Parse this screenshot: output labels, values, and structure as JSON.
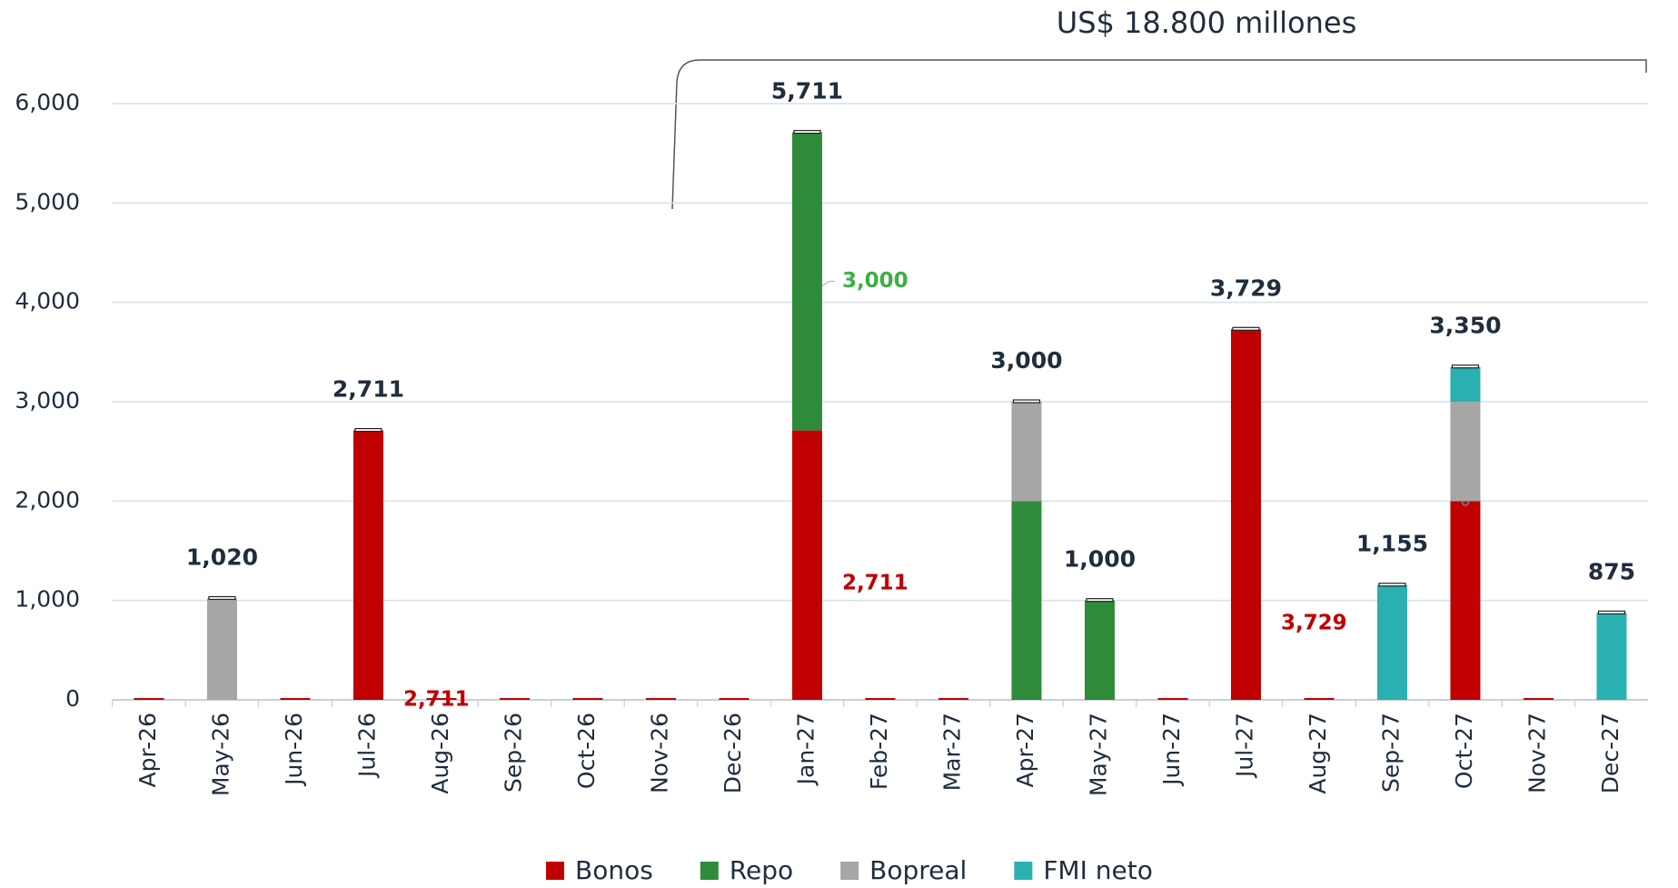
{
  "chart_data": {
    "type": "bar",
    "stacked": true,
    "annotation": "US$ 18.800 millones",
    "categories": [
      "Apr-26",
      "May-26",
      "Jun-26",
      "Jul-26",
      "Aug-26",
      "Sep-26",
      "Oct-26",
      "Nov-26",
      "Dec-26",
      "Jan-27",
      "Feb-27",
      "Mar-27",
      "Apr-27",
      "May-27",
      "Jun-27",
      "Jul-27",
      "Aug-27",
      "Sep-27",
      "Oct-27",
      "Nov-27",
      "Dec-27"
    ],
    "series": [
      {
        "name": "Bonos",
        "color": "#c00000",
        "label_color": "#c00000",
        "values": [
          0,
          0,
          0,
          2711,
          0,
          0,
          0,
          0,
          0,
          2711,
          0,
          0,
          0,
          0,
          0,
          3729,
          0,
          0,
          2000,
          0,
          0
        ],
        "value_labels": [
          null,
          null,
          null,
          "2,711",
          null,
          null,
          null,
          null,
          null,
          "2,711",
          null,
          null,
          null,
          null,
          null,
          "3,729",
          null,
          null,
          null,
          null,
          null
        ]
      },
      {
        "name": "Repo",
        "color": "#2e8b3a",
        "label_color": "#3cb043",
        "values": [
          0,
          0,
          0,
          0,
          0,
          0,
          0,
          0,
          0,
          3000,
          0,
          0,
          2000,
          1000,
          0,
          0,
          0,
          0,
          0,
          0,
          0
        ],
        "value_labels": [
          null,
          null,
          null,
          null,
          null,
          null,
          null,
          null,
          null,
          "3,000",
          null,
          null,
          null,
          null,
          null,
          null,
          null,
          null,
          "0",
          null,
          null
        ]
      },
      {
        "name": "Bopreal",
        "color": "#a6a6a6",
        "values": [
          0,
          1020,
          0,
          0,
          0,
          0,
          0,
          0,
          0,
          0,
          0,
          0,
          1000,
          0,
          0,
          0,
          0,
          0,
          1000,
          0,
          0
        ]
      },
      {
        "name": "FMI neto",
        "color": "#2ab0b0",
        "values": [
          0,
          0,
          0,
          0,
          0,
          0,
          0,
          0,
          0,
          0,
          0,
          0,
          0,
          0,
          0,
          0,
          0,
          1155,
          350,
          0,
          875
        ]
      }
    ],
    "totals": [
      null,
      1020,
      null,
      2711,
      null,
      null,
      null,
      null,
      null,
      5711,
      null,
      null,
      3000,
      1000,
      null,
      3729,
      null,
      1155,
      3350,
      null,
      875
    ],
    "total_labels": [
      null,
      "1,020",
      null,
      "2,711",
      null,
      null,
      null,
      null,
      null,
      "5,711",
      null,
      null,
      "3,000",
      "1,000",
      null,
      "3,729",
      null,
      "1,155",
      "3,350",
      null,
      "875"
    ],
    "ylim": [
      0,
      6000
    ],
    "yticks": [
      0,
      {
        "value": 1000,
        "label": "1,000"
      },
      {
        "value": 2000,
        "label": "2,000"
      },
      {
        "value": 3000,
        "label": "3,000"
      },
      {
        "value": 4000,
        "label": "4,000"
      },
      {
        "value": 5000,
        "label": "5,000"
      },
      {
        "value": 6000,
        "label": "6,000"
      }
    ],
    "grid": true,
    "legend": "bottom"
  }
}
